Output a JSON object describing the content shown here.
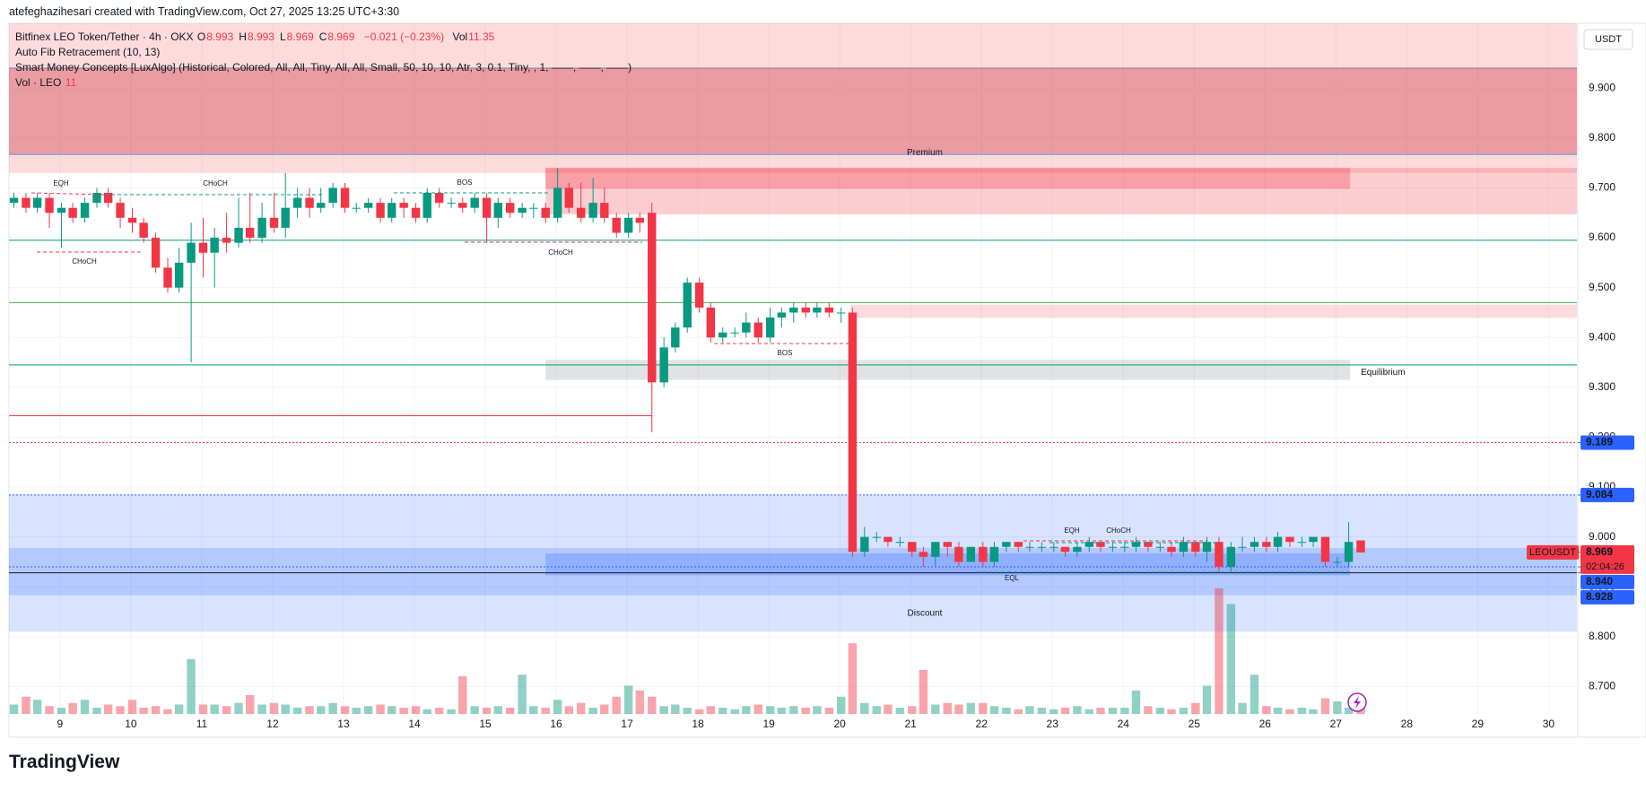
{
  "header": {
    "credit": "atefeghazihesari created with TradingView.com, Oct 27, 2025 13:25 UTC+3:30"
  },
  "legend": {
    "symbol": "Bitfinex LEO Token/Tether · 4h · OKX",
    "ohlc": [
      {
        "key": "O",
        "value": "8.993"
      },
      {
        "key": "H",
        "value": "8.993"
      },
      {
        "key": "L",
        "value": "8.969"
      },
      {
        "key": "C",
        "value": "8.969"
      }
    ],
    "change": "−0.021 (−0.23%)",
    "vol_key": "Vol",
    "vol_value": "11.35",
    "indicators": [
      "Auto Fib Retracement (10, 13)",
      "Smart Money Concepts [LuxAlgo] (Historical, Colored, All, All, Tiny, All, All, Small, 50, 10, 10, Atr, 3, 0.1, Tiny, , 1, ——, ——, ——)"
    ],
    "vol_title": "Vol · LEO",
    "vol_short": "11"
  },
  "footer": {
    "brand": "TradingView"
  },
  "chart_data": {
    "type": "candlestick",
    "currency": "USDT",
    "up_color": "#089981",
    "down_color": "#f23645",
    "xlim": [
      8.28,
      30.4
    ],
    "xticks": [
      9,
      10,
      11,
      12,
      13,
      14,
      15,
      16,
      17,
      18,
      19,
      20,
      21,
      22,
      23,
      24,
      25,
      26,
      27,
      28,
      29,
      30
    ],
    "ylim": [
      8.645,
      10.03
    ],
    "yticks": [
      {
        "value": 8.7,
        "label": "8.700"
      },
      {
        "value": 8.8,
        "label": "8.800"
      },
      {
        "value": 8.9,
        "label": "8.900"
      },
      {
        "value": 9,
        "label": "9.000"
      },
      {
        "value": 9.1,
        "label": "9.100"
      },
      {
        "value": 9.2,
        "label": "9.200"
      },
      {
        "value": 9.3,
        "label": "9.300"
      },
      {
        "value": 9.4,
        "label": "9.400"
      },
      {
        "value": 9.5,
        "label": "9.500"
      },
      {
        "value": 9.6,
        "label": "9.600"
      },
      {
        "value": 9.7,
        "label": "9.700"
      },
      {
        "value": 9.8,
        "label": "9.800"
      },
      {
        "value": 9.9,
        "label": "9.900"
      }
    ],
    "grid": true,
    "x": [
      8.35,
      8.52,
      8.68,
      8.85,
      9.02,
      9.18,
      9.35,
      9.52,
      9.68,
      9.85,
      10.02,
      10.18,
      10.35,
      10.52,
      10.68,
      10.85,
      11.02,
      11.18,
      11.35,
      11.52,
      11.68,
      11.85,
      12.02,
      12.18,
      12.35,
      12.52,
      12.68,
      12.85,
      13.02,
      13.18,
      13.35,
      13.52,
      13.68,
      13.85,
      14.02,
      14.18,
      14.35,
      14.52,
      14.68,
      14.85,
      15.02,
      15.18,
      15.35,
      15.52,
      15.68,
      15.85,
      16.02,
      16.18,
      16.35,
      16.52,
      16.68,
      16.85,
      17.02,
      17.18,
      17.35,
      17.52,
      17.68,
      17.85,
      18.02,
      18.18,
      18.35,
      18.52,
      18.68,
      18.85,
      19.02,
      19.18,
      19.35,
      19.52,
      19.68,
      19.85,
      20.02,
      20.18,
      20.35,
      20.52,
      20.68,
      20.85,
      21.02,
      21.18,
      21.35,
      21.52,
      21.68,
      21.85,
      22.02,
      22.18,
      22.35,
      22.52,
      22.68,
      22.85,
      23.02,
      23.18,
      23.35,
      23.52,
      23.68,
      23.85,
      24.02,
      24.18,
      24.35,
      24.52,
      24.68,
      24.85,
      25.02,
      25.18,
      25.35,
      25.52,
      25.68,
      25.85,
      26.02,
      26.18,
      26.35,
      26.52,
      26.68,
      26.85,
      27.02,
      27.18,
      27.35
    ],
    "ohlc": [
      [
        9.67,
        9.69,
        9.66,
        9.68
      ],
      [
        9.68,
        9.69,
        9.65,
        9.66
      ],
      [
        9.66,
        9.69,
        9.65,
        9.68
      ],
      [
        9.68,
        9.69,
        9.62,
        9.65
      ],
      [
        9.65,
        9.67,
        9.58,
        9.66
      ],
      [
        9.66,
        9.67,
        9.63,
        9.64
      ],
      [
        9.64,
        9.68,
        9.63,
        9.67
      ],
      [
        9.67,
        9.7,
        9.66,
        9.69
      ],
      [
        9.69,
        9.7,
        9.66,
        9.67
      ],
      [
        9.67,
        9.68,
        9.62,
        9.64
      ],
      [
        9.64,
        9.66,
        9.61,
        9.63
      ],
      [
        9.63,
        9.64,
        9.59,
        9.6
      ],
      [
        9.6,
        9.61,
        9.53,
        9.54
      ],
      [
        9.54,
        9.56,
        9.49,
        9.5
      ],
      [
        9.5,
        9.58,
        9.49,
        9.55
      ],
      [
        9.55,
        9.63,
        9.35,
        9.59
      ],
      [
        9.59,
        9.64,
        9.52,
        9.57
      ],
      [
        9.57,
        9.62,
        9.5,
        9.6
      ],
      [
        9.6,
        9.65,
        9.57,
        9.59
      ],
      [
        9.59,
        9.68,
        9.58,
        9.62
      ],
      [
        9.62,
        9.69,
        9.59,
        9.6
      ],
      [
        9.6,
        9.67,
        9.59,
        9.64
      ],
      [
        9.64,
        9.69,
        9.61,
        9.62
      ],
      [
        9.62,
        9.73,
        9.6,
        9.66
      ],
      [
        9.66,
        9.7,
        9.64,
        9.68
      ],
      [
        9.68,
        9.7,
        9.64,
        9.66
      ],
      [
        9.66,
        9.7,
        9.65,
        9.67
      ],
      [
        9.67,
        9.71,
        9.66,
        9.7
      ],
      [
        9.7,
        9.71,
        9.65,
        9.66
      ],
      [
        9.66,
        9.67,
        9.65,
        9.66
      ],
      [
        9.66,
        9.68,
        9.65,
        9.67
      ],
      [
        9.67,
        9.68,
        9.63,
        9.64
      ],
      [
        9.64,
        9.68,
        9.63,
        9.67
      ],
      [
        9.67,
        9.68,
        9.64,
        9.66
      ],
      [
        9.66,
        9.67,
        9.63,
        9.64
      ],
      [
        9.64,
        9.7,
        9.63,
        9.69
      ],
      [
        9.69,
        9.7,
        9.66,
        9.67
      ],
      [
        9.67,
        9.68,
        9.66,
        9.67
      ],
      [
        9.67,
        9.68,
        9.65,
        9.66
      ],
      [
        9.66,
        9.69,
        9.65,
        9.68
      ],
      [
        9.68,
        9.69,
        9.59,
        9.64
      ],
      [
        9.64,
        9.68,
        9.62,
        9.67
      ],
      [
        9.67,
        9.68,
        9.64,
        9.65
      ],
      [
        9.65,
        9.67,
        9.64,
        9.66
      ],
      [
        9.66,
        9.67,
        9.64,
        9.66
      ],
      [
        9.66,
        9.67,
        9.63,
        9.64
      ],
      [
        9.64,
        9.74,
        9.63,
        9.7
      ],
      [
        9.7,
        9.71,
        9.65,
        9.66
      ],
      [
        9.66,
        9.71,
        9.63,
        9.64
      ],
      [
        9.64,
        9.72,
        9.63,
        9.67
      ],
      [
        9.67,
        9.7,
        9.63,
        9.64
      ],
      [
        9.64,
        9.65,
        9.6,
        9.61
      ],
      [
        9.61,
        9.65,
        9.6,
        9.64
      ],
      [
        9.64,
        9.65,
        9.61,
        9.63
      ],
      [
        9.65,
        9.67,
        9.21,
        9.31
      ],
      [
        9.31,
        9.4,
        9.3,
        9.38
      ],
      [
        9.38,
        9.43,
        9.37,
        9.42
      ],
      [
        9.42,
        9.52,
        9.41,
        9.51
      ],
      [
        9.51,
        9.52,
        9.45,
        9.46
      ],
      [
        9.46,
        9.47,
        9.39,
        9.4
      ],
      [
        9.4,
        9.42,
        9.39,
        9.41
      ],
      [
        9.41,
        9.42,
        9.4,
        9.41
      ],
      [
        9.41,
        9.45,
        9.4,
        9.43
      ],
      [
        9.43,
        9.44,
        9.39,
        9.4
      ],
      [
        9.4,
        9.46,
        9.39,
        9.44
      ],
      [
        9.44,
        9.46,
        9.42,
        9.45
      ],
      [
        9.45,
        9.47,
        9.43,
        9.46
      ],
      [
        9.46,
        9.47,
        9.44,
        9.45
      ],
      [
        9.45,
        9.47,
        9.44,
        9.46
      ],
      [
        9.46,
        9.47,
        9.44,
        9.45
      ],
      [
        9.45,
        9.46,
        9.43,
        9.45
      ],
      [
        9.45,
        9.46,
        8.96,
        8.97
      ],
      [
        8.97,
        9.02,
        8.96,
        9
      ],
      [
        9,
        9.01,
        8.99,
        9
      ],
      [
        9,
        9,
        8.98,
        8.99
      ],
      [
        8.99,
        9,
        8.98,
        8.99
      ],
      [
        8.99,
        8.99,
        8.96,
        8.97
      ],
      [
        8.97,
        8.98,
        8.94,
        8.96
      ],
      [
        8.96,
        8.99,
        8.94,
        8.99
      ],
      [
        8.99,
        8.99,
        8.96,
        8.98
      ],
      [
        8.98,
        8.99,
        8.94,
        8.95
      ],
      [
        8.95,
        8.98,
        8.95,
        8.98
      ],
      [
        8.98,
        8.99,
        8.94,
        8.95
      ],
      [
        8.95,
        8.99,
        8.94,
        8.98
      ],
      [
        8.98,
        8.99,
        8.97,
        8.99
      ],
      [
        8.99,
        8.99,
        8.97,
        8.98
      ],
      [
        8.98,
        8.99,
        8.97,
        8.98
      ],
      [
        8.98,
        8.99,
        8.97,
        8.98
      ],
      [
        8.98,
        8.99,
        8.97,
        8.98
      ],
      [
        8.98,
        8.98,
        8.96,
        8.97
      ],
      [
        8.97,
        8.99,
        8.96,
        8.98
      ],
      [
        8.98,
        9,
        8.97,
        8.99
      ],
      [
        8.99,
        8.99,
        8.97,
        8.98
      ],
      [
        8.98,
        8.99,
        8.97,
        8.98
      ],
      [
        8.98,
        8.99,
        8.97,
        8.98
      ],
      [
        8.98,
        9,
        8.97,
        8.99
      ],
      [
        8.99,
        8.99,
        8.97,
        8.98
      ],
      [
        8.98,
        8.99,
        8.97,
        8.98
      ],
      [
        8.98,
        8.99,
        8.96,
        8.97
      ],
      [
        8.97,
        9,
        8.96,
        8.99
      ],
      [
        8.99,
        8.99,
        8.96,
        8.97
      ],
      [
        8.97,
        9,
        8.95,
        8.99
      ],
      [
        8.99,
        9,
        8.93,
        8.94
      ],
      [
        8.94,
        8.99,
        8.93,
        8.98
      ],
      [
        8.98,
        9,
        8.97,
        8.98
      ],
      [
        8.98,
        9,
        8.97,
        8.99
      ],
      [
        8.99,
        9,
        8.97,
        8.98
      ],
      [
        8.98,
        9.01,
        8.97,
        9
      ],
      [
        9,
        9,
        8.98,
        8.99
      ],
      [
        8.99,
        9,
        8.98,
        8.99
      ],
      [
        8.99,
        9,
        8.98,
        9
      ],
      [
        9,
        9,
        8.94,
        8.95
      ],
      [
        8.95,
        8.96,
        8.94,
        8.95
      ],
      [
        8.95,
        9.03,
        8.94,
        8.99
      ],
      [
        8.993,
        8.993,
        8.969,
        8.969
      ]
    ],
    "volume": [
      12,
      22,
      18,
      10,
      8,
      14,
      18,
      8,
      12,
      10,
      18,
      8,
      10,
      6,
      12,
      70,
      12,
      12,
      10,
      14,
      24,
      12,
      14,
      12,
      8,
      10,
      10,
      14,
      10,
      8,
      10,
      12,
      10,
      8,
      10,
      6,
      8,
      6,
      48,
      10,
      8,
      10,
      8,
      50,
      10,
      8,
      18,
      10,
      14,
      8,
      12,
      22,
      36,
      30,
      22,
      10,
      12,
      8,
      6,
      10,
      8,
      6,
      10,
      12,
      10,
      8,
      10,
      8,
      10,
      8,
      22,
      90,
      14,
      10,
      12,
      8,
      10,
      56,
      12,
      14,
      12,
      14,
      14,
      10,
      8,
      6,
      10,
      8,
      6,
      8,
      10,
      6,
      8,
      8,
      8,
      30,
      10,
      8,
      6,
      8,
      14,
      36,
      160,
      140,
      14,
      50,
      10,
      8,
      6,
      8,
      6,
      20,
      16,
      8,
      11.35
    ],
    "zones": [
      {
        "top": 10.03,
        "bottom": 9.73,
        "color": "rgba(242,54,69,0.18)"
      },
      {
        "name": "Premium",
        "top": 9.94,
        "bottom": 9.767,
        "color": "rgba(200,40,50,0.35)"
      },
      {
        "top": 9.74,
        "bottom": 9.647,
        "x": [
          15.85,
          30.4
        ],
        "color": "rgba(242,54,69,0.25)"
      },
      {
        "top": 9.74,
        "bottom": 9.698,
        "x": [
          15.85,
          27.2
        ],
        "color": "rgba(242,54,69,0.3)"
      },
      {
        "top": 9.466,
        "bottom": 9.439,
        "x": [
          20.15,
          30.4
        ],
        "color": "rgba(242,54,69,0.18)"
      },
      {
        "name": "Equilibrium",
        "top": 9.355,
        "bottom": 9.315,
        "x": [
          15.85,
          27.2
        ],
        "color": "rgba(120,123,134,0.22)"
      },
      {
        "top": 9.085,
        "bottom": 8.81,
        "color": "rgba(41,98,255,0.18)"
      },
      {
        "name": "Discount",
        "top": 8.978,
        "bottom": 8.883,
        "color": "rgba(41,98,255,0.2)"
      },
      {
        "top": 8.967,
        "bottom": 8.923,
        "x": [
          15.85,
          27.2
        ],
        "color": "rgba(41,98,255,0.25)"
      }
    ],
    "levels": [
      {
        "value": 9.94,
        "color": "#787b86"
      },
      {
        "value": 9.767,
        "color": "#5b9cf6"
      },
      {
        "value": 9.595,
        "color": "#089981"
      },
      {
        "value": 9.47,
        "color": "#4caf50"
      },
      {
        "value": 9.345,
        "color": "#089981"
      },
      {
        "value": 9.243,
        "x": [
          8.28,
          17.35
        ],
        "color": "#f23645"
      },
      {
        "value": 9.189,
        "color": "#f23645",
        "dash": true
      },
      {
        "value": 9.084,
        "color": "#2962ff",
        "dash": true
      },
      {
        "value": 8.94,
        "color": "#2962ff",
        "dash": true
      },
      {
        "value": 8.928,
        "color": "#131722"
      }
    ],
    "price_tags": [
      {
        "value": 9.189,
        "label": "9.189",
        "color": "#2962ff"
      },
      {
        "value": 9.084,
        "label": "9.084",
        "color": "#2962ff"
      },
      {
        "value": 8.969,
        "label": "8.969",
        "symbol": "LEOUSDT",
        "countdown": "02:04:26",
        "color": "#f23645"
      },
      {
        "value": 8.94,
        "label": "8.940",
        "color": "#2962ff"
      },
      {
        "value": 8.928,
        "label": "8.928",
        "color": "#2962ff"
      }
    ],
    "annotations": [
      {
        "text": "EQH",
        "color": "#f23645"
      },
      {
        "text": "CHoCH",
        "color": "#089981"
      },
      {
        "text": "CHoCH",
        "color": "#f23645"
      },
      {
        "text": "BOS",
        "color": "#089981"
      },
      {
        "text": "CHoCH",
        "color": "#f23645"
      },
      {
        "text": "BOS",
        "color": "#f23645"
      },
      {
        "text": "EQH",
        "color": "#f23645"
      },
      {
        "text": "CHoCH",
        "color": "#089981"
      },
      {
        "text": "EQL",
        "color": "#089981"
      }
    ]
  }
}
